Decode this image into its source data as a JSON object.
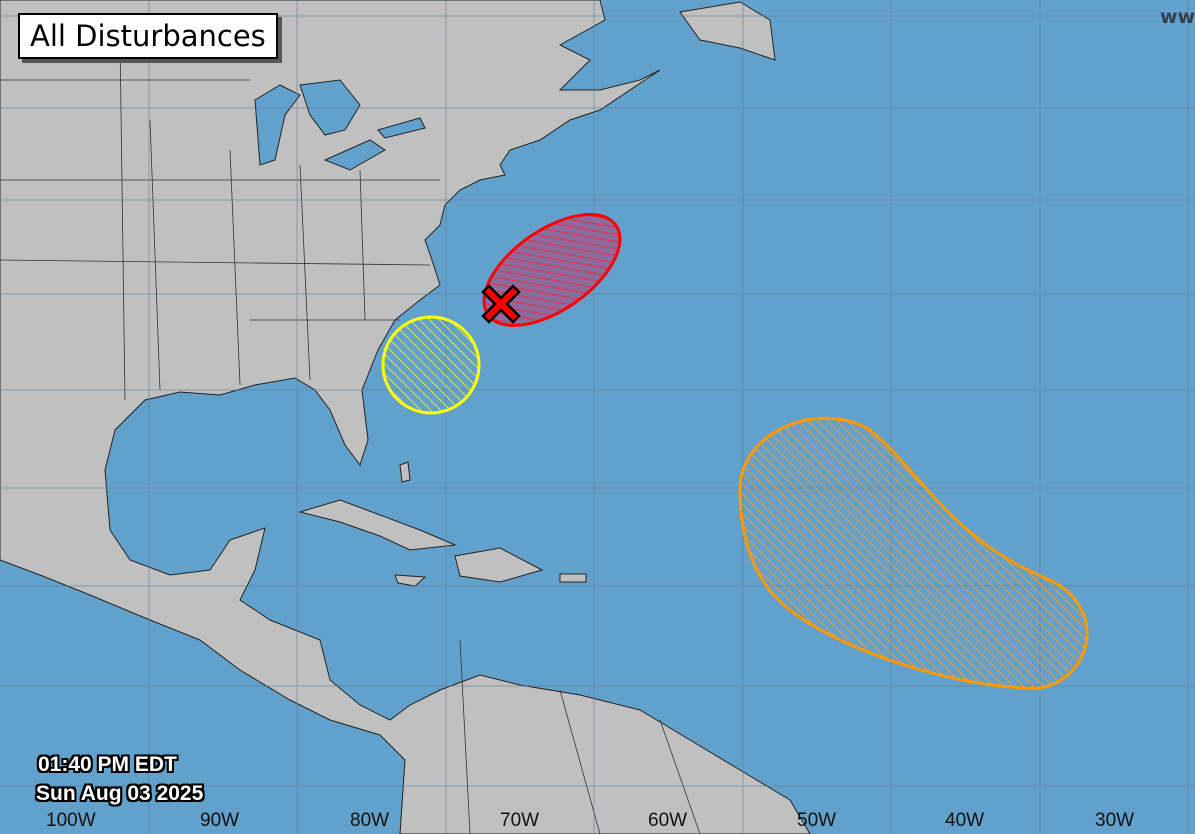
{
  "title": "All Disturbances",
  "timestamp": {
    "time": "01:40 PM EDT",
    "date": "Sun Aug 03 2025"
  },
  "watermark": "ww",
  "longitude_labels": [
    "100W",
    "90W",
    "80W",
    "70W",
    "60W",
    "50W",
    "40W",
    "30W"
  ],
  "colors": {
    "ocean": "#62a1cb",
    "land": "#c0c0c0",
    "low": "#ffff00",
    "medium": "#ff9900",
    "high": "#ff0000"
  },
  "disturbances": [
    {
      "category": "high",
      "color": "#ff0000",
      "marker": "x-icon"
    },
    {
      "category": "low",
      "color": "#ffff00"
    },
    {
      "category": "medium",
      "color": "#ff9900"
    }
  ]
}
